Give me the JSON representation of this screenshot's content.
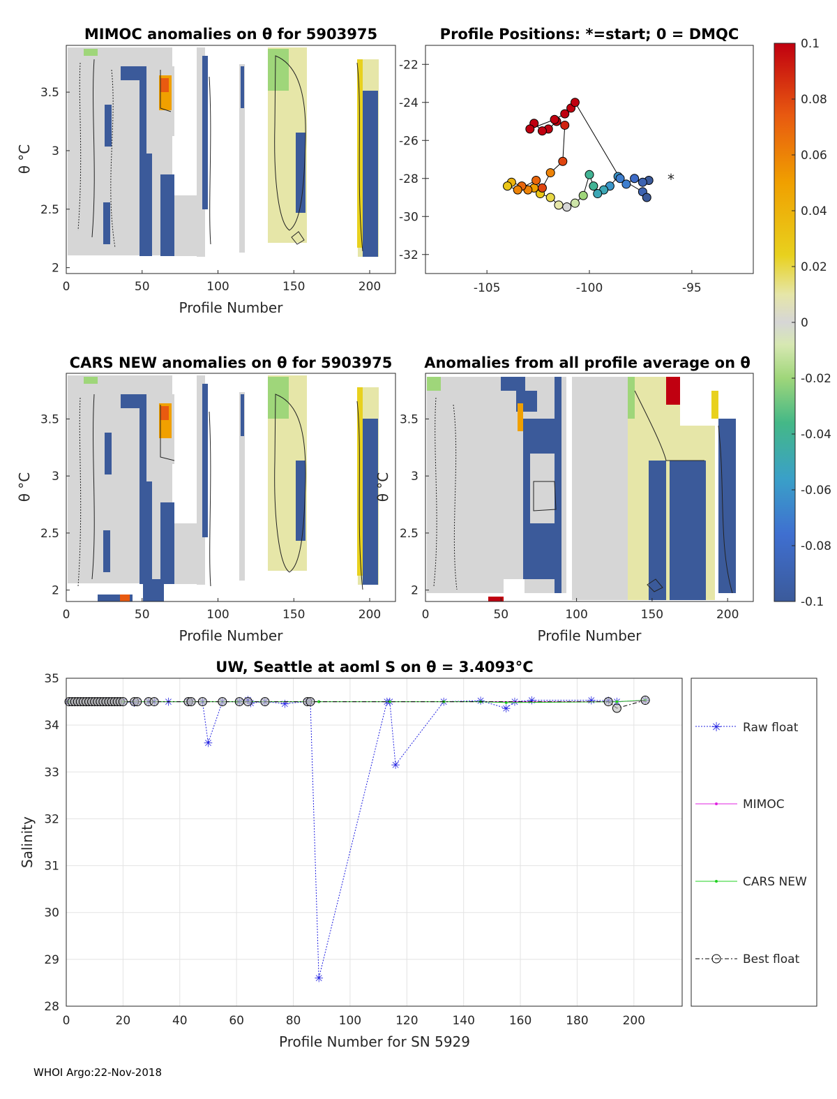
{
  "footer": "WHOI Argo:22-Nov-2018",
  "colors": {
    "raw": "#1f1fe0",
    "mimoc": "#e020e0",
    "cars": "#20d020",
    "best": "#000000",
    "deep": "#3b5a9a",
    "neutral": "#d6d6d6"
  },
  "chart_data": [
    {
      "type": "heatmap",
      "title": "MIMOC anomalies on θ  for 5903975",
      "xlabel": "Profile Number",
      "ylabel": "θ °C",
      "xlim": [
        0,
        217
      ],
      "ylim": [
        1.95,
        3.9
      ],
      "xticks": [
        0,
        50,
        100,
        150,
        200
      ],
      "yticks": [
        2,
        2.5,
        3,
        3.5
      ],
      "column_blocks": [
        {
          "x0": 1,
          "x1": 50,
          "level": 0.0
        },
        {
          "x0": 50,
          "x1": 62,
          "level": -0.1
        },
        {
          "x0": 62,
          "x1": 70,
          "level": 0.0
        },
        {
          "x0": 70,
          "x1": 94,
          "level": 0.0
        },
        {
          "x0": 114,
          "x1": 118,
          "level": -0.1
        },
        {
          "x0": 133,
          "x1": 160,
          "level": 0.01
        },
        {
          "x0": 190,
          "x1": 206,
          "level": -0.1
        }
      ]
    },
    {
      "type": "scatter",
      "title": "Profile Positions: *=start; 0 = DMQC",
      "xlabel": "",
      "ylabel": "",
      "xlim": [
        -108,
        -92
      ],
      "ylim": [
        -33,
        -21
      ],
      "xticks": [
        -105,
        -100,
        -95
      ],
      "yticks": [
        -22,
        -24,
        -26,
        -28,
        -30,
        -32
      ],
      "x": [
        -97.1,
        -97.4,
        -97.8,
        -98.2,
        -98.6,
        -99.0,
        -99.3,
        -99.6,
        -99.8,
        -100.0,
        -100.3,
        -100.7,
        -101.1,
        -101.5,
        -101.9,
        -102.4,
        -102.7,
        -103.0,
        -103.3,
        -103.8,
        -104.0,
        -103.5,
        -102.6,
        -102.3,
        -101.9,
        -101.3,
        -101.2,
        -101.6,
        -102.0,
        -102.3,
        -102.7,
        -102.9,
        -101.7,
        -101.2,
        -100.9,
        -100.7,
        -98.5,
        -97.4,
        -97.2
      ],
      "y": [
        -28.1,
        -28.2,
        -28.0,
        -28.3,
        -27.9,
        -28.4,
        -28.6,
        -28.8,
        -28.4,
        -27.8,
        -28.9,
        -29.3,
        -29.5,
        -29.4,
        -29.0,
        -28.8,
        -28.5,
        -28.6,
        -28.4,
        -28.2,
        -28.4,
        -28.6,
        -28.1,
        -28.5,
        -27.7,
        -27.1,
        -25.2,
        -25.0,
        -25.4,
        -25.5,
        -25.1,
        -25.4,
        -24.9,
        -24.6,
        -24.3,
        -24.0,
        -28.0,
        -28.7,
        -29.0
      ],
      "color_values": [
        -0.1,
        -0.09,
        -0.08,
        -0.07,
        -0.06,
        -0.06,
        -0.05,
        -0.05,
        -0.04,
        -0.04,
        -0.02,
        -0.01,
        0.0,
        0.01,
        0.02,
        0.03,
        0.05,
        0.06,
        0.07,
        0.04,
        0.03,
        0.06,
        0.07,
        0.08,
        0.06,
        0.08,
        0.09,
        0.1,
        0.1,
        0.1,
        0.1,
        0.1,
        0.1,
        0.1,
        0.1,
        0.1,
        -0.07,
        -0.09,
        -0.1
      ]
    },
    {
      "type": "heatmap",
      "title": "CARS NEW anomalies on θ for 5903975",
      "xlabel": "Profile Number",
      "ylabel": "θ °C",
      "xlim": [
        0,
        217
      ],
      "ylim": [
        1.9,
        3.9
      ],
      "xticks": [
        0,
        50,
        100,
        150,
        200
      ],
      "yticks": [
        2,
        2.5,
        3,
        3.5
      ]
    },
    {
      "type": "heatmap",
      "title": "Anomalies from all profile average on θ",
      "xlabel": "Profile Number",
      "ylabel": "θ °C",
      "xlim": [
        0,
        217
      ],
      "ylim": [
        1.9,
        3.9
      ],
      "xticks": [
        0,
        50,
        100,
        150,
        200
      ],
      "yticks": [
        2,
        2.5,
        3,
        3.5
      ]
    },
    {
      "type": "colorbar",
      "range": [
        -0.1,
        0.1
      ],
      "ticks": [
        "0.1",
        "0.08",
        "0.06",
        "0.04",
        "0.02",
        "0",
        "-0.02",
        "-0.04",
        "-0.06",
        "-0.08",
        "-0.1"
      ],
      "tick_values": [
        0.1,
        0.08,
        0.06,
        0.04,
        0.02,
        0,
        -0.02,
        -0.04,
        -0.06,
        -0.08,
        -0.1
      ]
    },
    {
      "type": "line",
      "title": "UW, Seattle at aoml S on θ = 3.4093°C",
      "xlabel": "Profile Number for SN 5929",
      "ylabel": "Salinity",
      "xlim": [
        0,
        217
      ],
      "ylim": [
        28,
        35
      ],
      "xticks": [
        0,
        20,
        40,
        60,
        80,
        100,
        120,
        140,
        160,
        180,
        200
      ],
      "yticks": [
        28,
        29,
        30,
        31,
        32,
        33,
        34,
        35
      ],
      "legend": [
        "Raw float",
        "MIMOC",
        "CARS NEW",
        "Best float"
      ],
      "legend_position": "outside-right",
      "series": [
        {
          "name": "Raw float",
          "x": [
            1,
            2,
            3,
            4,
            5,
            6,
            7,
            8,
            9,
            10,
            11,
            12,
            13,
            14,
            15,
            16,
            17,
            18,
            19,
            20,
            24,
            25,
            29,
            31,
            36,
            43,
            44,
            48,
            50,
            55,
            61,
            64,
            65,
            70,
            77,
            85,
            86,
            89,
            113,
            114,
            116,
            133,
            146,
            155,
            158,
            164,
            185,
            191,
            194,
            204
          ],
          "y": [
            34.5,
            34.5,
            34.5,
            34.5,
            34.5,
            34.5,
            34.5,
            34.5,
            34.5,
            34.5,
            34.5,
            34.5,
            34.5,
            34.5,
            34.5,
            34.5,
            34.5,
            34.5,
            34.5,
            34.5,
            34.48,
            34.5,
            34.5,
            34.5,
            34.5,
            34.5,
            34.5,
            34.5,
            33.62,
            34.5,
            34.5,
            34.54,
            34.47,
            34.5,
            34.46,
            34.5,
            34.5,
            28.6,
            34.5,
            34.5,
            33.15,
            34.5,
            34.52,
            34.36,
            34.5,
            34.53,
            34.53,
            34.52,
            34.5,
            34.53
          ]
        },
        {
          "name": "MIMOC",
          "x": [
            1,
            20,
            60,
            89,
            114,
            133,
            146,
            194,
            204
          ],
          "y": [
            34.5,
            34.5,
            34.5,
            34.5,
            34.5,
            34.5,
            34.5,
            34.5,
            34.52
          ]
        },
        {
          "name": "CARS NEW",
          "x": [
            1,
            20,
            60,
            89,
            114,
            133,
            146,
            155,
            194,
            204
          ],
          "y": [
            34.5,
            34.5,
            34.5,
            34.5,
            34.5,
            34.5,
            34.5,
            34.48,
            34.5,
            34.53
          ]
        },
        {
          "name": "Best float",
          "x": [
            1,
            2,
            3,
            4,
            5,
            6,
            7,
            8,
            9,
            10,
            11,
            12,
            13,
            14,
            15,
            16,
            17,
            18,
            19,
            20,
            24,
            25,
            29,
            31,
            43,
            44,
            48,
            55,
            61,
            64,
            70,
            85,
            86,
            191,
            194,
            204
          ],
          "y": [
            34.5,
            34.5,
            34.5,
            34.5,
            34.5,
            34.5,
            34.5,
            34.5,
            34.5,
            34.5,
            34.5,
            34.5,
            34.5,
            34.5,
            34.5,
            34.5,
            34.5,
            34.5,
            34.5,
            34.5,
            34.5,
            34.5,
            34.5,
            34.5,
            34.5,
            34.5,
            34.5,
            34.5,
            34.5,
            34.5,
            34.5,
            34.5,
            34.5,
            34.5,
            34.36,
            34.53
          ]
        }
      ]
    }
  ]
}
